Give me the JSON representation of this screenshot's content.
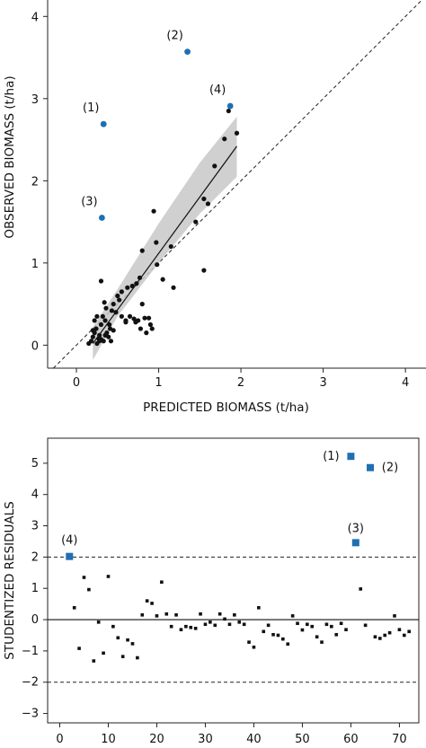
{
  "chart_data": [
    {
      "type": "scatter",
      "xlabel": "PREDICTED BIOMASS (t/ha)",
      "ylabel": "OBSERVED BIOMASS (t/ha)",
      "xlim": [
        -0.35,
        4.25
      ],
      "ylim": [
        -0.28,
        4.2
      ],
      "xticks": [
        0,
        1,
        2,
        3,
        4
      ],
      "yticks": [
        0,
        1,
        2,
        3,
        4
      ],
      "reference_line": "1:1 dashed",
      "fit_line": {
        "x": [
          0.2,
          1.95
        ],
        "y": [
          0.02,
          2.42
        ]
      },
      "confidence_band": {
        "x": [
          0.2,
          0.5,
          1.0,
          1.5,
          1.95
        ],
        "upper": [
          0.22,
          0.68,
          1.48,
          2.22,
          2.78
        ],
        "lower": [
          -0.18,
          0.35,
          1.0,
          1.6,
          2.05
        ]
      },
      "outliers": [
        {
          "label": "(1)",
          "x": 0.33,
          "y": 2.69
        },
        {
          "label": "(2)",
          "x": 1.35,
          "y": 3.57
        },
        {
          "label": "(3)",
          "x": 0.31,
          "y": 1.55
        },
        {
          "label": "(4)",
          "x": 1.87,
          "y": 2.91
        }
      ],
      "points": [
        [
          0.15,
          0.02
        ],
        [
          0.18,
          0.05
        ],
        [
          0.2,
          0.1
        ],
        [
          0.22,
          0.15
        ],
        [
          0.24,
          0.2
        ],
        [
          0.2,
          0.18
        ],
        [
          0.25,
          0.02
        ],
        [
          0.27,
          0.08
        ],
        [
          0.28,
          0.12
        ],
        [
          0.3,
          0.25
        ],
        [
          0.32,
          0.35
        ],
        [
          0.35,
          0.3
        ],
        [
          0.37,
          0.15
        ],
        [
          0.39,
          0.1
        ],
        [
          0.41,
          0.2
        ],
        [
          0.43,
          0.42
        ],
        [
          0.22,
          0.3
        ],
        [
          0.25,
          0.35
        ],
        [
          0.28,
          0.05
        ],
        [
          0.3,
          0.07
        ],
        [
          0.33,
          0.05
        ],
        [
          0.35,
          0.12
        ],
        [
          0.36,
          0.45
        ],
        [
          0.4,
          0.25
        ],
        [
          0.45,
          0.5
        ],
        [
          0.48,
          0.4
        ],
        [
          0.5,
          0.6
        ],
        [
          0.52,
          0.55
        ],
        [
          0.55,
          0.65
        ],
        [
          0.3,
          0.78
        ],
        [
          0.34,
          0.52
        ],
        [
          0.6,
          0.3
        ],
        [
          0.62,
          0.7
        ],
        [
          0.65,
          0.35
        ],
        [
          0.7,
          0.32
        ],
        [
          0.72,
          0.28
        ],
        [
          0.75,
          0.3
        ],
        [
          0.78,
          0.2
        ],
        [
          0.8,
          0.5
        ],
        [
          0.8,
          1.15
        ],
        [
          0.83,
          0.33
        ],
        [
          0.85,
          0.15
        ],
        [
          0.88,
          0.33
        ],
        [
          0.9,
          0.25
        ],
        [
          0.92,
          0.2
        ],
        [
          0.94,
          1.63
        ],
        [
          0.97,
          1.25
        ],
        [
          0.98,
          0.98
        ],
        [
          1.05,
          0.8
        ],
        [
          1.15,
          1.2
        ],
        [
          1.18,
          0.7
        ],
        [
          1.45,
          1.5
        ],
        [
          1.55,
          1.78
        ],
        [
          1.6,
          1.72
        ],
        [
          1.68,
          2.18
        ],
        [
          1.8,
          2.51
        ],
        [
          1.85,
          2.85
        ],
        [
          1.95,
          2.58
        ],
        [
          1.55,
          0.91
        ],
        [
          0.6,
          0.28
        ],
        [
          0.45,
          0.18
        ],
        [
          0.42,
          0.05
        ],
        [
          0.55,
          0.35
        ],
        [
          0.68,
          0.72
        ],
        [
          0.73,
          0.75
        ],
        [
          0.77,
          0.82
        ]
      ]
    },
    {
      "type": "scatter",
      "xlabel": "",
      "ylabel": "STUDENTIZED RESIDUALS",
      "xlim": [
        -2.5,
        74
      ],
      "ylim": [
        -3.3,
        5.8
      ],
      "xticks": [
        0,
        10,
        20,
        30,
        40,
        50,
        60,
        70
      ],
      "yticks": [
        -3,
        -2,
        -1,
        0,
        1,
        2,
        3,
        4,
        5
      ],
      "hlines_dashed": [
        2,
        -2
      ],
      "hline_solid": 0,
      "outliers": [
        {
          "label": "(1)",
          "x": 60,
          "y": 5.22
        },
        {
          "label": "(2)",
          "x": 64,
          "y": 4.86
        },
        {
          "label": "(3)",
          "x": 61,
          "y": 2.46
        },
        {
          "label": "(4)",
          "x": 2,
          "y": 2.02
        }
      ],
      "points": [
        [
          3,
          0.38
        ],
        [
          4,
          -0.92
        ],
        [
          5,
          1.35
        ],
        [
          6,
          0.96
        ],
        [
          7,
          -1.32
        ],
        [
          8,
          -0.08
        ],
        [
          9,
          -1.07
        ],
        [
          10,
          1.38
        ],
        [
          11,
          -0.22
        ],
        [
          12,
          -0.58
        ],
        [
          13,
          -1.18
        ],
        [
          14,
          -0.65
        ],
        [
          15,
          -0.77
        ],
        [
          16,
          -1.22
        ],
        [
          17,
          0.15
        ],
        [
          18,
          0.6
        ],
        [
          19,
          0.52
        ],
        [
          20,
          0.12
        ],
        [
          21,
          1.2
        ],
        [
          22,
          0.18
        ],
        [
          23,
          -0.22
        ],
        [
          24,
          0.15
        ],
        [
          25,
          -0.32
        ],
        [
          26,
          -0.22
        ],
        [
          27,
          -0.25
        ],
        [
          28,
          -0.28
        ],
        [
          29,
          0.18
        ],
        [
          30,
          -0.15
        ],
        [
          31,
          -0.08
        ],
        [
          32,
          -0.18
        ],
        [
          33,
          0.18
        ],
        [
          34,
          0.02
        ],
        [
          35,
          -0.15
        ],
        [
          36,
          0.15
        ],
        [
          37,
          -0.08
        ],
        [
          38,
          -0.15
        ],
        [
          39,
          -0.72
        ],
        [
          40,
          -0.88
        ],
        [
          41,
          0.38
        ],
        [
          42,
          -0.38
        ],
        [
          43,
          -0.18
        ],
        [
          44,
          -0.48
        ],
        [
          45,
          -0.5
        ],
        [
          46,
          -0.62
        ],
        [
          47,
          -0.78
        ],
        [
          48,
          0.12
        ],
        [
          49,
          -0.12
        ],
        [
          50,
          -0.33
        ],
        [
          51,
          -0.15
        ],
        [
          52,
          -0.22
        ],
        [
          53,
          -0.55
        ],
        [
          54,
          -0.72
        ],
        [
          55,
          -0.15
        ],
        [
          56,
          -0.22
        ],
        [
          57,
          -0.48
        ],
        [
          58,
          -0.12
        ],
        [
          59,
          -0.32
        ],
        [
          62,
          0.98
        ],
        [
          63,
          -0.18
        ],
        [
          65,
          -0.55
        ],
        [
          66,
          -0.6
        ],
        [
          67,
          -0.5
        ],
        [
          68,
          -0.42
        ],
        [
          69,
          0.12
        ],
        [
          70,
          -0.32
        ],
        [
          71,
          -0.5
        ],
        [
          72,
          -0.38
        ]
      ]
    }
  ],
  "colors": {
    "outlier": "#1f6fb2",
    "point": "#111111",
    "band": "#c8c8c8"
  }
}
